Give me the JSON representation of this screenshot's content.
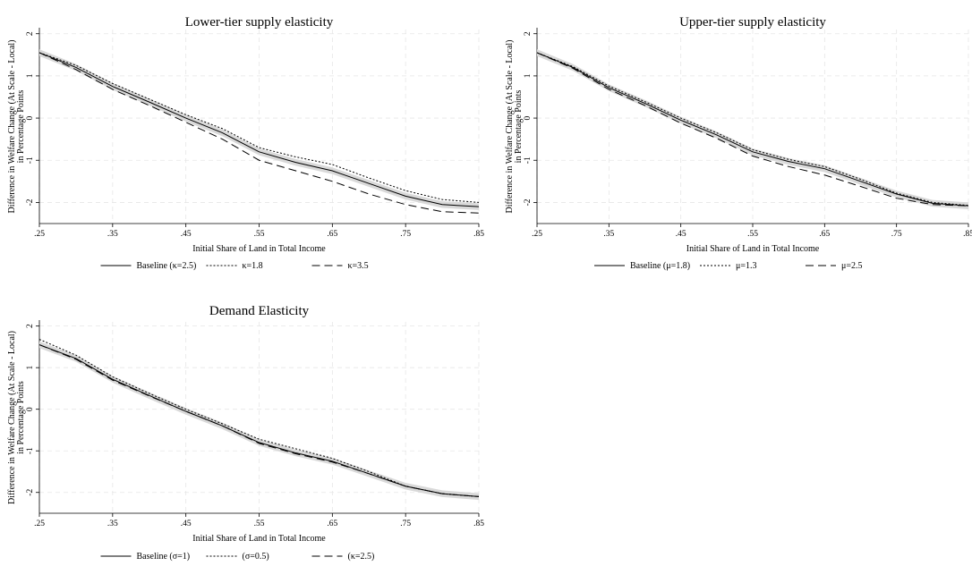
{
  "chart_data": [
    {
      "type": "line",
      "title": "Lower-tier supply elasticity",
      "xlabel": "Initial Share of Land in Total Income",
      "ylabel_line1": "Difference in Welfare Change (At Scale - Local)",
      "ylabel_line2": "in Percentage Points",
      "xlim": [
        0.25,
        0.85
      ],
      "ylim": [
        -2.5,
        2.1
      ],
      "xticks": [
        0.25,
        0.35,
        0.45,
        0.55,
        0.65,
        0.75,
        0.85
      ],
      "xtick_labels": [
        ".25",
        ".35",
        ".45",
        ".55",
        ".65",
        ".75",
        ".85"
      ],
      "yticks": [
        -2,
        -1,
        0,
        1,
        2
      ],
      "ytick_labels": [
        "-2",
        "-1",
        "0",
        "1",
        "2"
      ],
      "grid": true,
      "legend_position": "bottom",
      "band_color": "#d9d9d9",
      "x": [
        0.25,
        0.3,
        0.35,
        0.4,
        0.45,
        0.5,
        0.55,
        0.6,
        0.65,
        0.7,
        0.75,
        0.8,
        0.85
      ],
      "series": [
        {
          "name": "Baseline (κ=2.5)",
          "style": "solid",
          "band": true,
          "values": [
            1.55,
            1.2,
            0.75,
            0.38,
            0.0,
            -0.35,
            -0.8,
            -1.05,
            -1.25,
            -1.55,
            -1.85,
            -2.05,
            -2.1
          ]
        },
        {
          "name": "κ=1.8",
          "style": "dotted",
          "band": false,
          "values": [
            1.55,
            1.25,
            0.82,
            0.45,
            0.08,
            -0.25,
            -0.7,
            -0.92,
            -1.1,
            -1.42,
            -1.72,
            -1.93,
            -2.0
          ]
        },
        {
          "name": "κ=3.5",
          "style": "dashed",
          "band": false,
          "values": [
            1.55,
            1.15,
            0.68,
            0.3,
            -0.1,
            -0.5,
            -1.0,
            -1.25,
            -1.5,
            -1.8,
            -2.05,
            -2.22,
            -2.25
          ]
        }
      ]
    },
    {
      "type": "line",
      "title": "Upper-tier supply elasticity",
      "xlabel": "Initial Share of Land in Total Income",
      "ylabel_line1": "Difference in Welfare Change (At Scale - Local)",
      "ylabel_line2": "in Percentage Points",
      "xlim": [
        0.25,
        0.85
      ],
      "ylim": [
        -2.5,
        2.1
      ],
      "xticks": [
        0.25,
        0.35,
        0.45,
        0.55,
        0.65,
        0.75,
        0.85
      ],
      "xtick_labels": [
        ".25",
        ".35",
        ".45",
        ".55",
        ".65",
        ".75",
        ".85"
      ],
      "yticks": [
        -2,
        -1,
        0,
        1,
        2
      ],
      "ytick_labels": [
        "-2",
        "-1",
        "0",
        "1",
        "2"
      ],
      "grid": true,
      "legend_position": "bottom",
      "band_color": "#d9d9d9",
      "x": [
        0.25,
        0.3,
        0.35,
        0.4,
        0.45,
        0.5,
        0.55,
        0.6,
        0.65,
        0.7,
        0.75,
        0.8,
        0.85
      ],
      "series": [
        {
          "name": "Baseline (μ=1.8)",
          "style": "solid",
          "band": true,
          "values": [
            1.55,
            1.2,
            0.72,
            0.35,
            -0.05,
            -0.4,
            -0.8,
            -1.03,
            -1.2,
            -1.5,
            -1.8,
            -2.02,
            -2.08
          ]
        },
        {
          "name": "μ=1.3",
          "style": "dotted",
          "band": false,
          "values": [
            1.55,
            1.22,
            0.76,
            0.39,
            0.0,
            -0.35,
            -0.75,
            -0.98,
            -1.15,
            -1.45,
            -1.78,
            -2.0,
            -2.07
          ]
        },
        {
          "name": "μ=2.5",
          "style": "dashed",
          "band": false,
          "values": [
            1.55,
            1.18,
            0.68,
            0.3,
            -0.12,
            -0.48,
            -0.9,
            -1.15,
            -1.35,
            -1.62,
            -1.9,
            -2.05,
            -2.08
          ]
        }
      ]
    },
    {
      "type": "line",
      "title": "Demand Elasticity",
      "xlabel": "Initial Share of Land in Total Income",
      "ylabel_line1": "Difference in Welfare Change (At Scale - Local)",
      "ylabel_line2": "in Percentage Points",
      "xlim": [
        0.25,
        0.85
      ],
      "ylim": [
        -2.5,
        2.1
      ],
      "xticks": [
        0.25,
        0.35,
        0.45,
        0.55,
        0.65,
        0.75,
        0.85
      ],
      "xtick_labels": [
        ".25",
        ".35",
        ".45",
        ".55",
        ".65",
        ".75",
        ".85"
      ],
      "yticks": [
        -2,
        -1,
        0,
        1,
        2
      ],
      "ytick_labels": [
        "-2",
        "-1",
        "0",
        "1",
        "2"
      ],
      "grid": true,
      "legend_position": "bottom",
      "band_color": "#d9d9d9",
      "x": [
        0.25,
        0.3,
        0.35,
        0.4,
        0.45,
        0.5,
        0.55,
        0.6,
        0.65,
        0.7,
        0.75,
        0.8,
        0.85
      ],
      "series": [
        {
          "name": "Baseline (σ=1)",
          "style": "solid",
          "band": true,
          "values": [
            1.55,
            1.22,
            0.72,
            0.33,
            -0.05,
            -0.4,
            -0.8,
            -1.05,
            -1.25,
            -1.55,
            -1.85,
            -2.03,
            -2.1
          ]
        },
        {
          "name": "(σ=0.5)",
          "style": "dotted",
          "band": false,
          "values": [
            1.68,
            1.3,
            0.78,
            0.38,
            0.0,
            -0.35,
            -0.72,
            -0.95,
            -1.18,
            -1.5,
            -1.85,
            -2.03,
            -2.1
          ]
        },
        {
          "name": "(κ=2.5)",
          "style": "dashed",
          "band": false,
          "values": [
            1.55,
            1.2,
            0.7,
            0.32,
            -0.05,
            -0.4,
            -0.82,
            -1.07,
            -1.27,
            -1.55,
            -1.85,
            -2.03,
            -2.1
          ]
        }
      ]
    }
  ]
}
